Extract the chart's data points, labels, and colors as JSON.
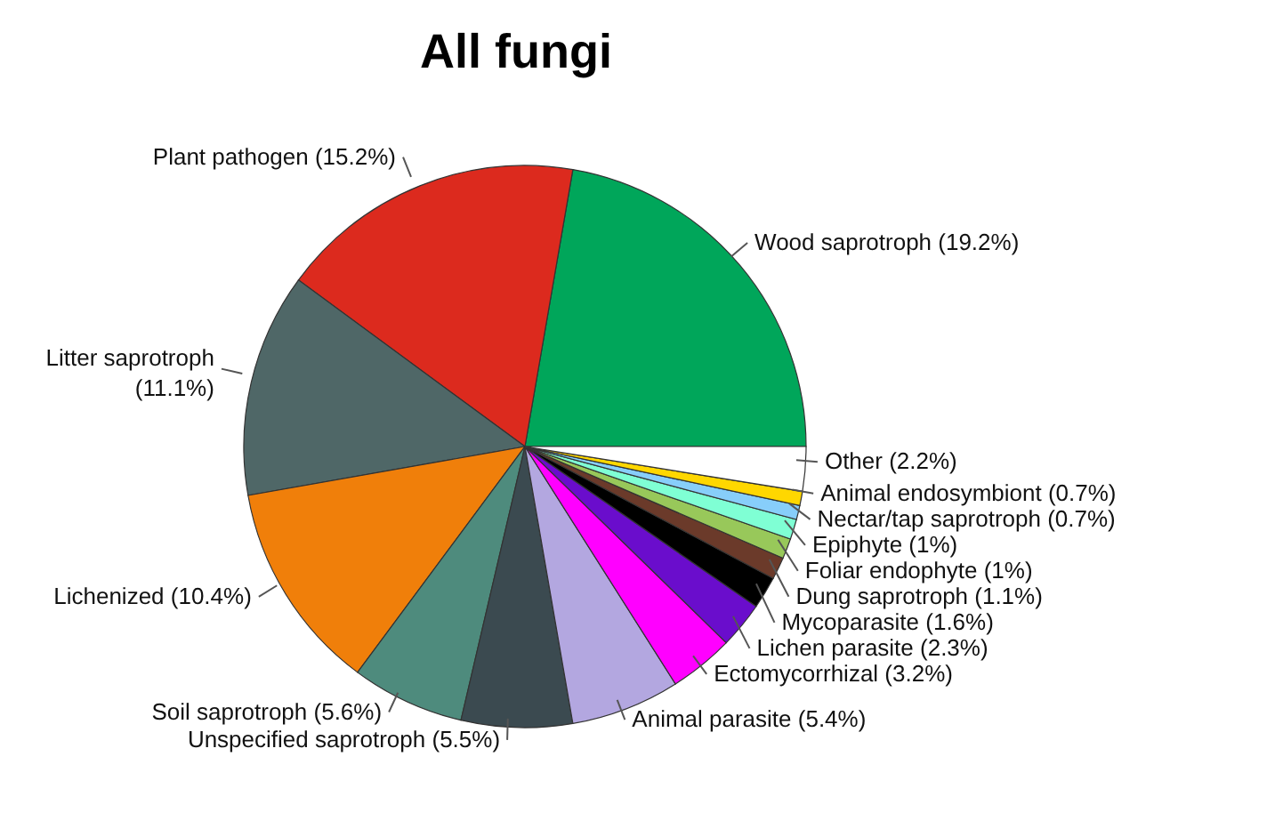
{
  "chart_data": {
    "type": "pie",
    "title": "All fungi",
    "categories": [
      "Wood saprotroph (19.2%)",
      "Plant pathogen (15.2%)",
      "Litter saprotroph\n(11.1%)",
      "Lichenized (10.4%)",
      "Soil saprotroph (5.6%)",
      "Unspecified saprotroph (5.5%)",
      "Animal parasite (5.4%)",
      "Ectomycorrhizal (3.2%)",
      "Lichen parasite (2.3%)",
      "Mycoparasite (1.6%)",
      "Dung saprotroph (1.1%)",
      "Foliar endophyte (1%)",
      "Epiphyte (1%)",
      "Nectar/tap saprotroph (0.7%)",
      "Animal endosymbiont (0.7%)",
      "Other (2.2%)"
    ],
    "values": [
      19.2,
      15.2,
      11.1,
      10.4,
      5.6,
      5.5,
      5.4,
      3.2,
      2.3,
      1.6,
      1.1,
      1,
      1,
      0.7,
      0.7,
      2.2
    ],
    "colors": [
      "#00a65a",
      "#dc2a1e",
      "#4f6767",
      "#f07f0a",
      "#4e8b7d",
      "#3b4a50",
      "#b3a7e0",
      "#ff00ff",
      "#6a0dcc",
      "#000000",
      "#6b3a2a",
      "#98c85a",
      "#7fffd4",
      "#87cefa",
      "#ffd700",
      "#ffffff"
    ],
    "legend": false
  }
}
